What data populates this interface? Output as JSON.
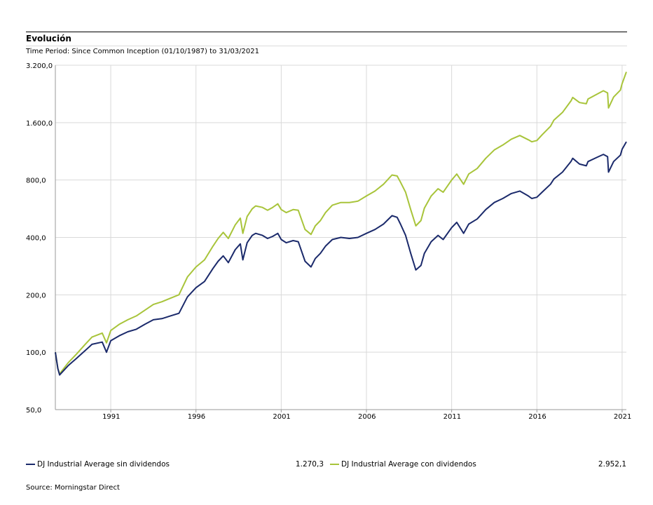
{
  "header": {
    "title": "Evolución",
    "subtitle": "Time Period: Since Common Inception (01/10/1987) to 31/03/2021"
  },
  "footer": {
    "source": "Source: Morningstar Direct"
  },
  "legend": [
    {
      "label": "DJ Industrial Average sin dividendos",
      "value": "1.270,3",
      "color": "#1b2a6b"
    },
    {
      "label": "DJ Industrial Average con dividendos",
      "value": "2.952,1",
      "color": "#a8c43a"
    }
  ],
  "chart_data": {
    "type": "line",
    "title": "Evolución",
    "y_scale": "log2",
    "ylim": [
      50,
      3200
    ],
    "y_ticks": [
      50,
      100,
      200,
      400,
      800,
      1600,
      3200
    ],
    "y_tick_labels": [
      "50,0",
      "100,0",
      "200,0",
      "400,0",
      "800,0",
      "1.600,0",
      "3.200,0"
    ],
    "xlim": [
      1987.75,
      2021.25
    ],
    "x_ticks": [
      1991,
      1996,
      2001,
      2006,
      2011,
      2016,
      2021
    ],
    "x_tick_labels": [
      "1991",
      "1996",
      "2001",
      "2006",
      "2011",
      "2016",
      "2021"
    ],
    "grid": true,
    "legend_position": "bottom",
    "series": [
      {
        "name": "DJ Industrial Average sin dividendos",
        "color": "#1b2a6b",
        "x": [
          1987.75,
          1987.9,
          1988.0,
          1988.5,
          1989.0,
          1989.5,
          1989.9,
          1990.5,
          1990.75,
          1991.0,
          1991.5,
          1992.0,
          1992.5,
          1993.0,
          1993.5,
          1994.0,
          1994.5,
          1995.0,
          1995.5,
          1996.0,
          1996.5,
          1997.0,
          1997.3,
          1997.6,
          1997.9,
          1998.3,
          1998.6,
          1998.75,
          1999.0,
          1999.3,
          1999.5,
          1999.9,
          2000.2,
          2000.5,
          2000.8,
          2001.0,
          2001.3,
          2001.7,
          2002.0,
          2002.4,
          2002.75,
          2003.0,
          2003.3,
          2003.6,
          2004.0,
          2004.5,
          2005.0,
          2005.5,
          2006.0,
          2006.5,
          2007.0,
          2007.5,
          2007.8,
          2008.0,
          2008.3,
          2008.6,
          2008.9,
          2009.2,
          2009.4,
          2009.8,
          2010.2,
          2010.5,
          2011.0,
          2011.3,
          2011.7,
          2012.0,
          2012.5,
          2013.0,
          2013.5,
          2014.0,
          2014.5,
          2015.0,
          2015.5,
          2015.7,
          2016.0,
          2016.3,
          2016.8,
          2017.0,
          2017.5,
          2018.0,
          2018.1,
          2018.5,
          2018.9,
          2019.0,
          2019.5,
          2019.9,
          2020.15,
          2020.2,
          2020.5,
          2020.9,
          2021.0,
          2021.25
        ],
        "values": [
          100,
          82,
          76,
          85,
          93,
          102,
          110,
          113,
          100,
          115,
          122,
          128,
          132,
          140,
          148,
          150,
          155,
          160,
          195,
          218,
          235,
          275,
          300,
          320,
          295,
          345,
          370,
          305,
          375,
          410,
          420,
          410,
          395,
          405,
          420,
          390,
          375,
          385,
          380,
          300,
          280,
          310,
          330,
          360,
          390,
          400,
          395,
          400,
          420,
          440,
          470,
          520,
          510,
          470,
          410,
          330,
          270,
          285,
          330,
          380,
          410,
          390,
          450,
          480,
          420,
          470,
          500,
          560,
          610,
          640,
          680,
          700,
          660,
          640,
          650,
          690,
          760,
          810,
          880,
          1000,
          1040,
          970,
          950,
          1000,
          1050,
          1090,
          1060,
          880,
          1000,
          1080,
          1160,
          1270
        ]
      },
      {
        "name": "DJ Industrial Average con dividendos",
        "color": "#a8c43a",
        "x": [
          1987.75,
          1987.9,
          1988.0,
          1988.5,
          1989.0,
          1989.5,
          1989.9,
          1990.5,
          1990.75,
          1991.0,
          1991.5,
          1992.0,
          1992.5,
          1993.0,
          1993.5,
          1994.0,
          1994.5,
          1995.0,
          1995.5,
          1996.0,
          1996.5,
          1997.0,
          1997.3,
          1997.6,
          1997.9,
          1998.3,
          1998.6,
          1998.75,
          1999.0,
          1999.3,
          1999.5,
          1999.9,
          2000.2,
          2000.5,
          2000.8,
          2001.0,
          2001.3,
          2001.7,
          2002.0,
          2002.4,
          2002.75,
          2003.0,
          2003.3,
          2003.6,
          2004.0,
          2004.5,
          2005.0,
          2005.5,
          2006.0,
          2006.5,
          2007.0,
          2007.5,
          2007.8,
          2008.0,
          2008.3,
          2008.6,
          2008.9,
          2009.2,
          2009.4,
          2009.8,
          2010.2,
          2010.5,
          2011.0,
          2011.3,
          2011.7,
          2012.0,
          2012.5,
          2013.0,
          2013.5,
          2014.0,
          2014.5,
          2015.0,
          2015.5,
          2015.7,
          2016.0,
          2016.3,
          2016.8,
          2017.0,
          2017.5,
          2018.0,
          2018.1,
          2018.5,
          2018.9,
          2019.0,
          2019.5,
          2019.9,
          2020.15,
          2020.2,
          2020.5,
          2020.9,
          2021.0,
          2021.25
        ],
        "values": [
          100,
          82,
          77,
          88,
          98,
          110,
          120,
          126,
          112,
          130,
          140,
          148,
          155,
          166,
          178,
          184,
          192,
          200,
          248,
          280,
          305,
          360,
          395,
          425,
          395,
          465,
          505,
          420,
          515,
          565,
          585,
          575,
          555,
          575,
          600,
          560,
          540,
          560,
          555,
          440,
          415,
          460,
          490,
          540,
          590,
          610,
          610,
          620,
          660,
          700,
          760,
          850,
          840,
          780,
          690,
          560,
          460,
          490,
          570,
          660,
          720,
          690,
          800,
          860,
          760,
          860,
          920,
          1040,
          1150,
          1220,
          1310,
          1370,
          1300,
          1270,
          1290,
          1380,
          1530,
          1650,
          1810,
          2080,
          2170,
          2040,
          2010,
          2130,
          2250,
          2350,
          2290,
          1910,
          2180,
          2370,
          2560,
          2952
        ]
      }
    ]
  }
}
